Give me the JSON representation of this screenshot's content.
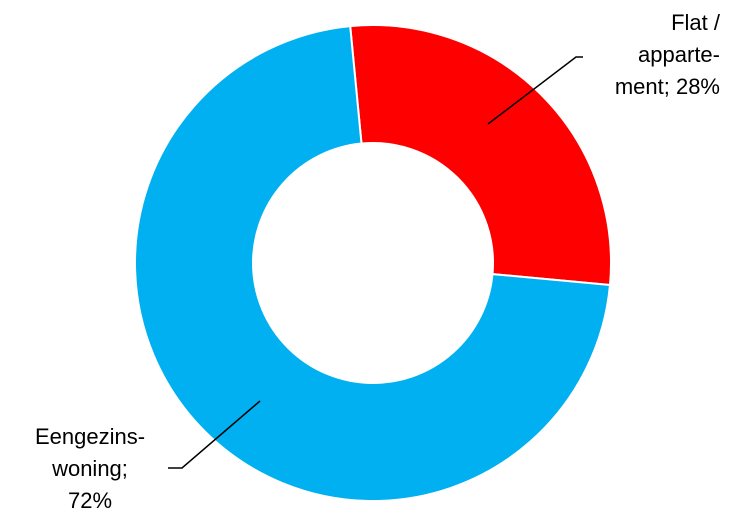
{
  "chart_data": {
    "type": "pie",
    "donut": true,
    "categories": [
      "Flat / apparte-ment",
      "Eengezins-woning"
    ],
    "values": [
      28,
      72
    ],
    "unit": "%",
    "colors": [
      "#ff0000",
      "#00b0f0"
    ],
    "slice_border_color": "#ffffff",
    "legend": "none",
    "data_labels": [
      {
        "category": "Flat / apparte-ment",
        "lines": [
          "Flat /",
          "apparte-",
          "ment; 28%"
        ]
      },
      {
        "category": "Eengezins-woning",
        "lines": [
          "Eengezins-",
          "woning;",
          "72%"
        ]
      }
    ]
  }
}
